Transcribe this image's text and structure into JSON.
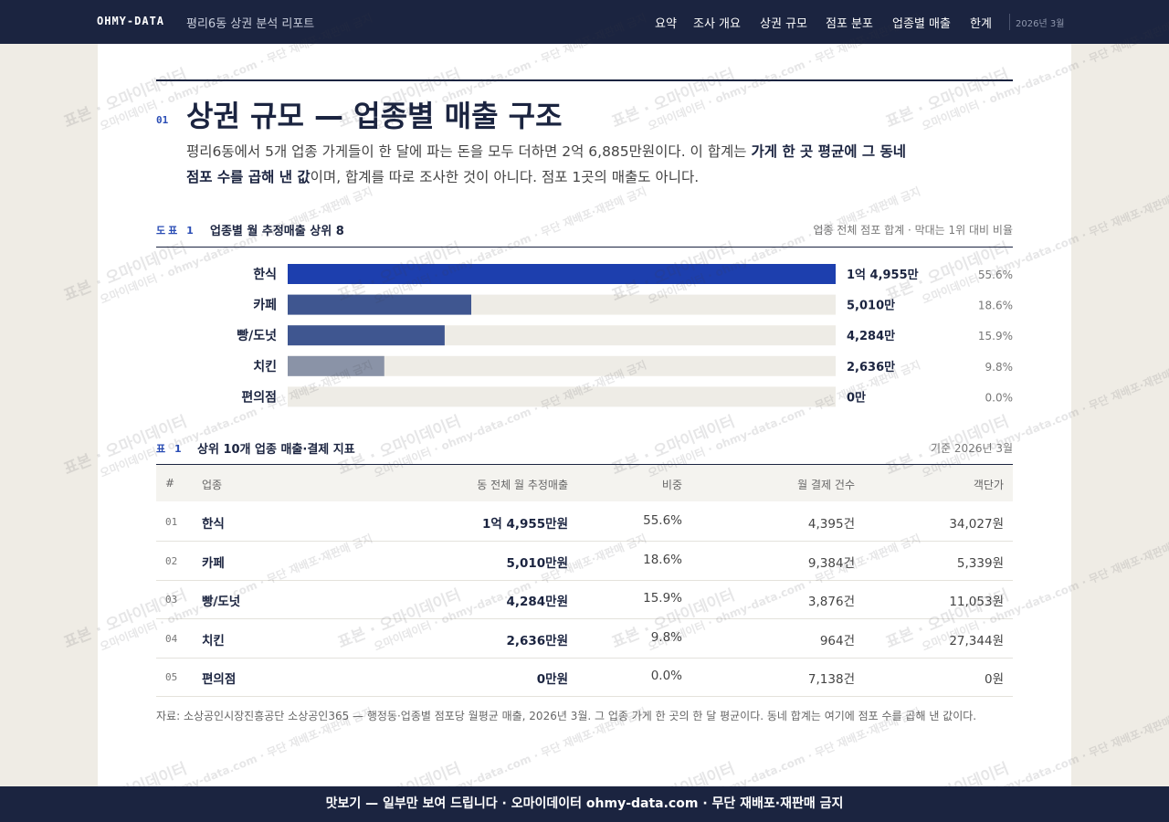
{
  "nav": {
    "brand": "OHMY-DATA",
    "subtitle": "평리6동 상권 분석 리포트",
    "items": [
      "요약",
      "조사 개요",
      "상권 규모",
      "점포 분포",
      "업종별 매출",
      "한계"
    ],
    "date": "2026년 3월"
  },
  "section": {
    "number": "01",
    "title": "상권 규모 — 업종별 매출 구조",
    "lead": [
      "평리6동에서 5개 업종 가게들이 한 달에 파는 돈을 모두 더하면 2억 6,885만원이다. 이 합계는 ",
      "가게 한 곳 평균에 그 동네 점포 수를 곱해 낸 값",
      "이며, 합계를 따로 조사한 것이 아니다. 점포 1곳의 매출도 아니다."
    ]
  },
  "chart_data": {
    "type": "bar",
    "label": "도표 1",
    "title": "업종별 월 추정매출 상위 8",
    "note": "업종 전체 점포 합계 · 막대는 1위 대비 비율",
    "categories": [
      "한식",
      "카페",
      "빵/도넛",
      "치킨",
      "편의점"
    ],
    "values": [
      14955,
      5010,
      4284,
      2636,
      0
    ],
    "value_labels": [
      "1억 4,955만",
      "5,010만",
      "4,284만",
      "2,636만",
      "0만"
    ],
    "shares": [
      "55.6%",
      "18.6%",
      "15.9%",
      "9.8%",
      "0.0%"
    ],
    "colors": [
      "#1d3fae",
      "#3f5690",
      "#3f5690",
      "#8a93a7",
      "#8a93a7"
    ],
    "track_color": "#eeece6"
  },
  "table": {
    "label": "표 1",
    "title": "상위 10개 업종 매출·결제 지표",
    "note": "기준 2026년 3월",
    "columns": [
      "#",
      "업종",
      "동 전체 월 추정매출",
      "비중",
      "월 결제 건수",
      "객단가"
    ],
    "rows": [
      [
        "01",
        "한식",
        "1억 4,955만원",
        "55.6%",
        "4,395건",
        "34,027원"
      ],
      [
        "02",
        "카페",
        "5,010만원",
        "18.6%",
        "9,384건",
        "5,339원"
      ],
      [
        "03",
        "빵/도넛",
        "4,284만원",
        "15.9%",
        "3,876건",
        "11,053원"
      ],
      [
        "04",
        "치킨",
        "2,636만원",
        "9.8%",
        "964건",
        "27,344원"
      ],
      [
        "05",
        "편의점",
        "0만원",
        "0.0%",
        "7,138건",
        "0원"
      ]
    ],
    "source": "자료: 소상공인시장진흥공단 소상공인365 — 행정동·업종별 점포당 월평균 매출, 2026년 3월. 그 업종 가게 한 곳의 한 달 평균이다. 동네 합계는 여기에 점포 수를 곱해 낸 값이다."
  },
  "watermarks": [
    "표본 · 오마이데이터",
    "오마이데이터 · ohmy-data.com · 무단 재배포·재판매 금지"
  ],
  "footer": "맛보기 — 일부만 보여 드립니다 · 오마이데이터 ohmy-data.com · 무단 재배포·재판매 금지"
}
